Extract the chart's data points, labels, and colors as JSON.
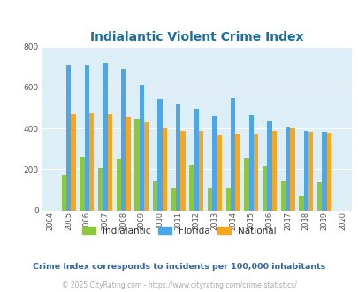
{
  "title": "Indialantic Violent Crime Index",
  "years": [
    2004,
    2005,
    2006,
    2007,
    2008,
    2009,
    2010,
    2011,
    2012,
    2013,
    2014,
    2015,
    2016,
    2017,
    2018,
    2019,
    2020
  ],
  "indialantic": [
    0,
    170,
    262,
    205,
    248,
    445,
    140,
    108,
    220,
    108,
    108,
    255,
    215,
    140,
    68,
    135,
    0
  ],
  "florida": [
    0,
    710,
    710,
    723,
    693,
    612,
    543,
    518,
    496,
    462,
    547,
    465,
    435,
    407,
    388,
    385,
    0
  ],
  "national": [
    0,
    468,
    475,
    468,
    455,
    430,
    401,
    387,
    387,
    368,
    375,
    373,
    387,
    401,
    385,
    380,
    0
  ],
  "color_indialantic": "#8dc63f",
  "color_florida": "#4da6e8",
  "color_national": "#f5a623",
  "bg_color": "#ddeef6",
  "ylim": [
    0,
    800
  ],
  "yticks": [
    0,
    200,
    400,
    600,
    800
  ],
  "subtitle": "Crime Index corresponds to incidents per 100,000 inhabitants",
  "copyright": "© 2025 CityRating.com - https://www.cityrating.com/crime-statistics/",
  "title_color": "#1a6ea0",
  "subtitle_color": "#336699",
  "copyright_color": "#aaaaaa"
}
